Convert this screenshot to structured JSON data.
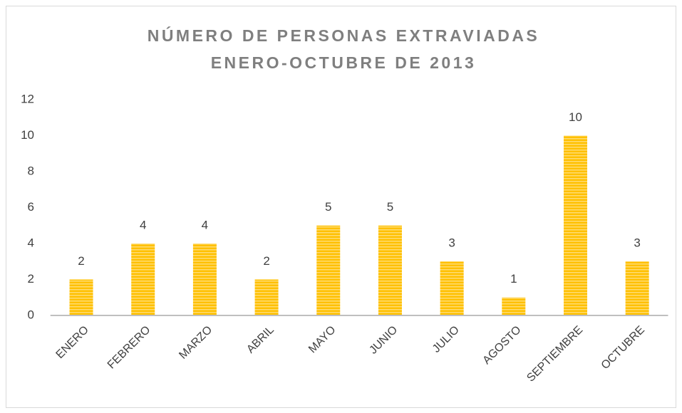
{
  "chart_data": {
    "type": "bar",
    "title": [
      "NÚMERO DE PERSONAS EXTRAVIADAS",
      "ENERO-OCTUBRE DE 2013"
    ],
    "categories": [
      "ENERO",
      "FEBRERO",
      "MARZO",
      "ABRIL",
      "MAYO",
      "JUNIO",
      "JULIO",
      "AGOSTO",
      "SEPTIEMBRE",
      "OCTUBRE"
    ],
    "values": [
      2,
      4,
      4,
      2,
      5,
      5,
      3,
      1,
      10,
      3
    ],
    "color": "#ffc000",
    "ylim": [
      0,
      12
    ],
    "yticks": [
      0,
      2,
      4,
      6,
      8,
      10,
      12
    ],
    "grid": false
  }
}
